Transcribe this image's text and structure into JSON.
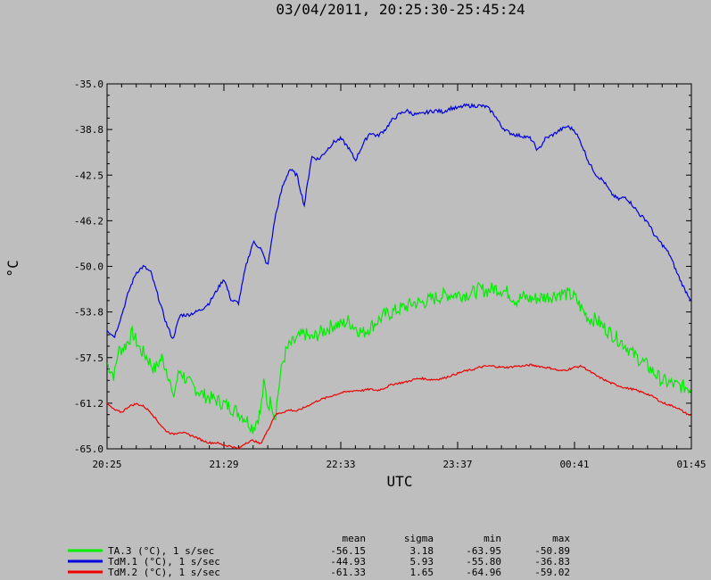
{
  "chart_data": {
    "type": "line",
    "title": "03/04/2011, 20:25:30-25:45:24",
    "xlabel": "UTC",
    "ylabel": "°C",
    "ylim": [
      -65.0,
      -35.0
    ],
    "y_ticks": [
      "-35.0",
      "-38.8",
      "-42.5",
      "-46.2",
      "-50.0",
      "-53.8",
      "-57.5",
      "-61.2",
      "-65.0"
    ],
    "x_range_minutes": [
      0,
      320
    ],
    "x_ticks": [
      {
        "minute": 0,
        "label": "20:25"
      },
      {
        "minute": 64,
        "label": "21:29"
      },
      {
        "minute": 128,
        "label": "22:33"
      },
      {
        "minute": 192,
        "label": "23:37"
      },
      {
        "minute": 256,
        "label": "00:41"
      },
      {
        "minute": 320,
        "label": "01:45"
      }
    ],
    "grid": false,
    "legend_placement": "bottom-left",
    "stats_headers": [
      "mean",
      "sigma",
      "min",
      "max"
    ],
    "series": [
      {
        "name": "TA.3 (°C), 1 s/sec",
        "color": "#00ee00",
        "noise": 0.6,
        "stats": [
          "-56.15",
          "3.18",
          "-63.95",
          "-50.89"
        ],
        "x": [
          0,
          4,
          6,
          10,
          14,
          18,
          22,
          26,
          30,
          34,
          36,
          38,
          40,
          44,
          48,
          52,
          56,
          60,
          64,
          70,
          76,
          80,
          84,
          86,
          88,
          90,
          92,
          94,
          96,
          98,
          100,
          104,
          108,
          112,
          116,
          120,
          124,
          128,
          132,
          136,
          140,
          144,
          148,
          152,
          156,
          160,
          164,
          168,
          172,
          176,
          180,
          184,
          188,
          192,
          196,
          200,
          204,
          208,
          212,
          216,
          220,
          224,
          228,
          232,
          236,
          240,
          244,
          248,
          252,
          256,
          260,
          264,
          268,
          272,
          276,
          280,
          284,
          288,
          292,
          296,
          300,
          304,
          308,
          312,
          316,
          320
        ],
        "y": [
          -58.0,
          -59.0,
          -57.0,
          -56.5,
          -55.5,
          -56.8,
          -57.5,
          -58.5,
          -57.5,
          -59.0,
          -61.0,
          -59.5,
          -58.5,
          -59.5,
          -60.0,
          -60.5,
          -60.8,
          -61.0,
          -61.3,
          -61.8,
          -62.5,
          -63.3,
          -62.0,
          -59.5,
          -61.5,
          -61.0,
          -62.5,
          -60.0,
          -58.0,
          -57.0,
          -56.5,
          -56.0,
          -55.5,
          -56.0,
          -55.5,
          -55.2,
          -54.8,
          -54.8,
          -54.5,
          -55.0,
          -55.5,
          -55.0,
          -54.5,
          -54.0,
          -53.8,
          -53.5,
          -53.3,
          -53.0,
          -53.0,
          -52.8,
          -52.6,
          -52.4,
          -52.3,
          -52.3,
          -52.3,
          -52.2,
          -51.9,
          -52.0,
          -51.8,
          -51.9,
          -52.2,
          -52.8,
          -52.5,
          -52.7,
          -52.6,
          -52.5,
          -52.4,
          -52.2,
          -52.3,
          -52.5,
          -53.5,
          -54.3,
          -54.4,
          -55.0,
          -55.5,
          -56.0,
          -56.5,
          -57.2,
          -57.7,
          -58.2,
          -58.8,
          -59.4,
          -59.6,
          -59.8,
          -59.9,
          -60.0
        ]
      },
      {
        "name": "TdM.1 (°C), 1 s/sec",
        "color": "#0000dd",
        "noise": 0.15,
        "stats": [
          "-44.93",
          "5.93",
          "-55.80",
          "-36.83"
        ],
        "x": [
          0,
          4,
          8,
          12,
          16,
          20,
          24,
          28,
          32,
          36,
          40,
          44,
          48,
          52,
          56,
          60,
          64,
          68,
          72,
          76,
          80,
          84,
          88,
          92,
          96,
          100,
          104,
          108,
          112,
          116,
          120,
          124,
          128,
          132,
          136,
          140,
          144,
          148,
          152,
          156,
          160,
          164,
          168,
          172,
          176,
          180,
          184,
          188,
          192,
          196,
          200,
          204,
          208,
          212,
          216,
          220,
          224,
          228,
          232,
          236,
          240,
          244,
          248,
          252,
          256,
          260,
          264,
          268,
          272,
          276,
          280,
          284,
          288,
          292,
          296,
          300,
          304,
          308,
          312,
          316,
          320
        ],
        "y": [
          -55.2,
          -55.8,
          -54.0,
          -52.0,
          -50.5,
          -50.0,
          -50.5,
          -52.5,
          -54.5,
          -56.0,
          -54.0,
          -54.0,
          -53.8,
          -53.5,
          -53.0,
          -52.0,
          -51.0,
          -52.8,
          -53.0,
          -50.0,
          -48.0,
          -48.5,
          -50.0,
          -46.0,
          -43.5,
          -42.0,
          -42.5,
          -45.0,
          -41.0,
          -41.2,
          -40.5,
          -39.8,
          -39.5,
          -40.2,
          -41.3,
          -40.0,
          -39.0,
          -39.3,
          -38.8,
          -38.0,
          -37.5,
          -37.2,
          -37.5,
          -37.5,
          -37.3,
          -37.2,
          -37.3,
          -37.0,
          -37.0,
          -36.8,
          -36.8,
          -36.8,
          -36.9,
          -37.5,
          -38.5,
          -39.0,
          -39.2,
          -39.3,
          -39.5,
          -40.5,
          -39.5,
          -39.2,
          -38.8,
          -38.5,
          -38.8,
          -40.0,
          -41.5,
          -42.5,
          -43.0,
          -44.0,
          -44.5,
          -44.3,
          -45.0,
          -45.8,
          -46.3,
          -47.5,
          -48.2,
          -49.0,
          -50.5,
          -51.8,
          -52.8
        ]
      },
      {
        "name": "TdM.2 (°C), 1 s/sec",
        "color": "#ee0000",
        "noise": 0.08,
        "stats": [
          "-61.33",
          "1.65",
          "-64.96",
          "-59.02"
        ],
        "x": [
          0,
          4,
          8,
          12,
          16,
          20,
          24,
          28,
          32,
          36,
          40,
          44,
          48,
          52,
          56,
          60,
          64,
          68,
          72,
          76,
          80,
          84,
          88,
          92,
          96,
          100,
          104,
          108,
          112,
          116,
          120,
          124,
          128,
          132,
          136,
          140,
          144,
          148,
          152,
          156,
          160,
          164,
          168,
          172,
          176,
          180,
          184,
          188,
          192,
          196,
          200,
          204,
          208,
          212,
          216,
          220,
          224,
          228,
          232,
          236,
          240,
          244,
          248,
          252,
          256,
          260,
          264,
          268,
          272,
          276,
          280,
          284,
          288,
          292,
          296,
          300,
          304,
          308,
          312,
          316,
          320
        ],
        "y": [
          -61.3,
          -61.8,
          -62.0,
          -61.5,
          -61.3,
          -61.5,
          -62.0,
          -62.8,
          -63.5,
          -63.8,
          -63.6,
          -63.8,
          -64.0,
          -64.3,
          -64.5,
          -64.5,
          -64.7,
          -64.8,
          -65.0,
          -64.5,
          -64.3,
          -64.6,
          -63.5,
          -62.2,
          -62.0,
          -61.8,
          -61.9,
          -61.6,
          -61.3,
          -61.0,
          -60.8,
          -60.6,
          -60.4,
          -60.3,
          -60.2,
          -60.2,
          -60.1,
          -60.2,
          -60.0,
          -59.7,
          -59.6,
          -59.5,
          -59.3,
          -59.2,
          -59.3,
          -59.3,
          -59.2,
          -59.0,
          -58.8,
          -58.6,
          -58.5,
          -58.3,
          -58.2,
          -58.2,
          -58.3,
          -58.3,
          -58.2,
          -58.2,
          -58.1,
          -58.2,
          -58.3,
          -58.4,
          -58.6,
          -58.5,
          -58.3,
          -58.2,
          -58.6,
          -59.0,
          -59.3,
          -59.6,
          -59.8,
          -60.0,
          -60.1,
          -60.3,
          -60.5,
          -60.8,
          -61.2,
          -61.4,
          -61.6,
          -62.0,
          -62.3
        ]
      }
    ]
  }
}
